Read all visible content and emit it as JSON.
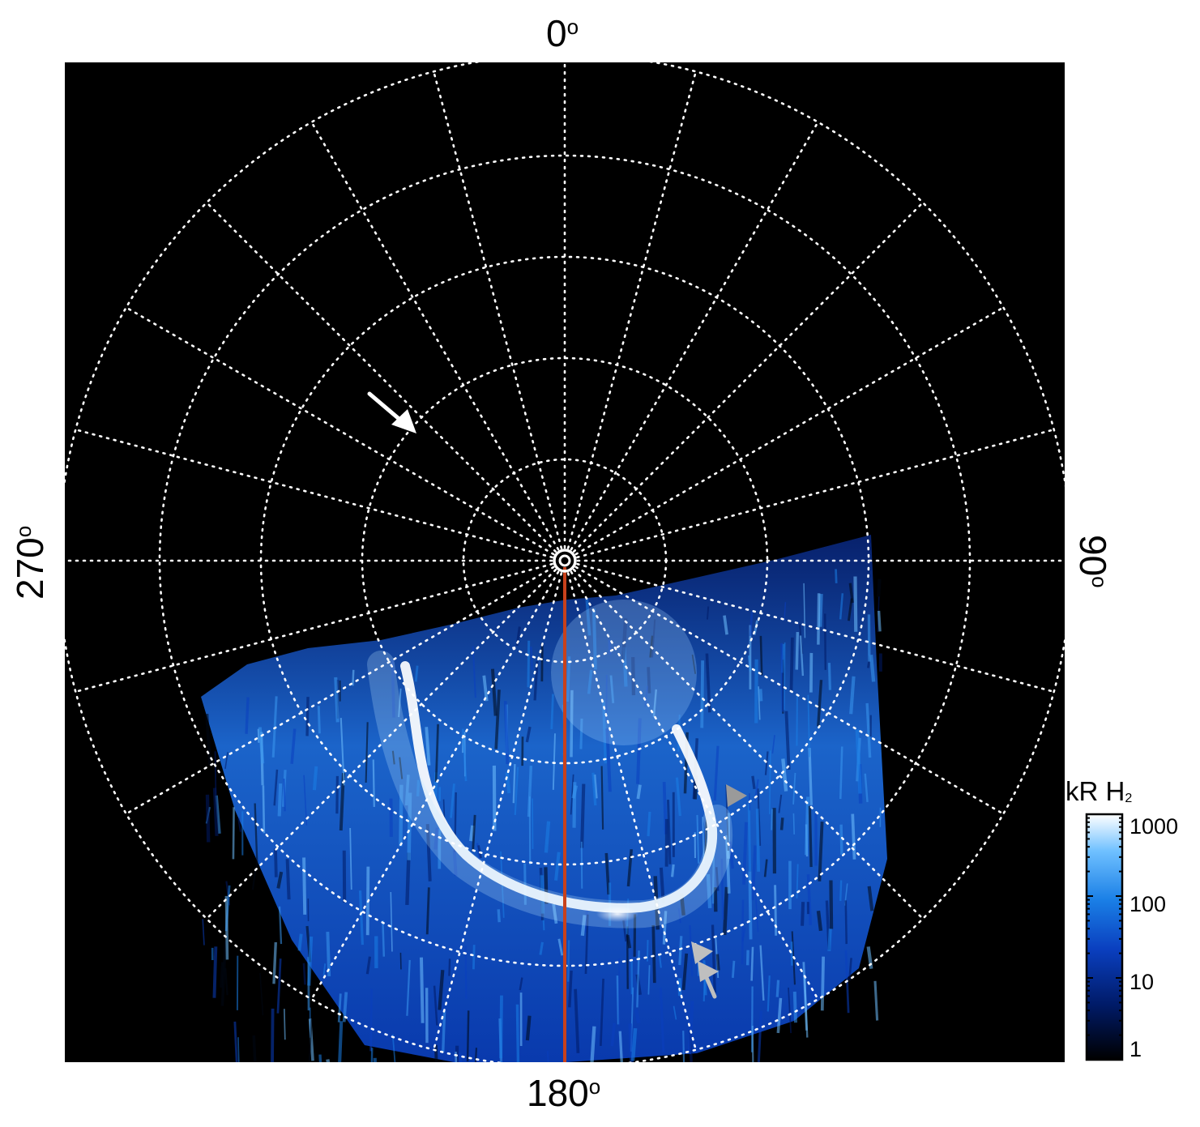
{
  "figure": {
    "projection": "polar",
    "background_color": "#000000",
    "grid_color": "#ffffff",
    "meridian_line_color": "#c8411b",
    "longitude_labels": {
      "top": "0",
      "right": "90",
      "bottom": "180",
      "left": "270",
      "degree_symbol": "o"
    },
    "grid": {
      "style": "dotted",
      "parallel_rings": 5,
      "meridian_spacing_deg": 15
    },
    "annotations": [
      {
        "name": "white-arrow",
        "color": "#ffffff",
        "direction": "down-right"
      },
      {
        "name": "gray-arrowhead-right",
        "color": "#9a9a9a",
        "direction": "right"
      },
      {
        "name": "gray-arrow-upper",
        "color": "#bfbfbf",
        "direction": "up-left"
      },
      {
        "name": "gray-arrow-lower",
        "color": "#bfbfbf",
        "direction": "up-left"
      }
    ]
  },
  "colorbar": {
    "title_main": "kR H",
    "title_sub": "2",
    "scale": "log",
    "range": [
      1,
      1000
    ],
    "tick_labels": [
      "1000",
      "100",
      "10",
      "1"
    ],
    "colors": [
      "#000000",
      "#001a66",
      "#0a3fbf",
      "#1a7fe6",
      "#6fc0ff",
      "#ffffff"
    ]
  }
}
